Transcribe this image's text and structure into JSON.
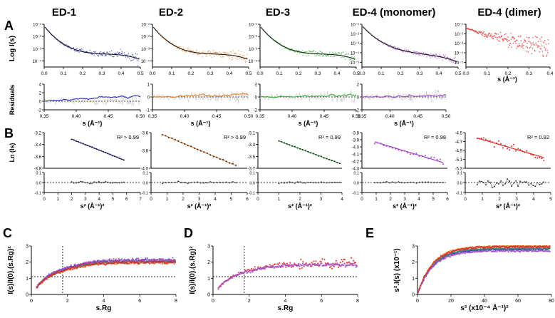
{
  "panel_letters": [
    "A",
    "B",
    "C",
    "D",
    "E"
  ],
  "column_titles": [
    "ED-1",
    "ED-2",
    "ED-3",
    "ED-4 (monomer)",
    "ED-4 (dimer)"
  ],
  "colors": {
    "ed1": "#2b2bb8",
    "ed2": "#e8802a",
    "ed3": "#34b536",
    "ed4_monomer": "#a04cc8",
    "ed4_dimer": "#dd2a2a",
    "fit": "#111111",
    "raw_noise": "#b0b0b0",
    "kratky_green": "#3a8a6a"
  },
  "chart_data": [
    {
      "id": "A-scattering",
      "type": "line",
      "ylabel": "Log I(s)",
      "xlabel": "s (Å⁻¹)",
      "xticks": [
        "0.0",
        "0.1",
        "0.2",
        "0.3",
        "0.4",
        "0.5"
      ],
      "yticks": [
        "10⁻¹",
        "10⁻²",
        "10⁻³",
        "10⁻⁴"
      ],
      "panels": [
        {
          "name": "ED-1",
          "xlim": [
            0,
            0.5
          ],
          "ylim_log10": [
            -4.5,
            -1
          ],
          "series": [
            {
              "name": "data",
              "color": "ed1"
            },
            {
              "name": "fit",
              "color": "fit"
            }
          ]
        },
        {
          "name": "ED-2",
          "xlim": [
            0,
            0.5
          ],
          "ylim_log10": [
            -4.5,
            -1
          ],
          "series": [
            {
              "name": "data",
              "color": "ed2"
            },
            {
              "name": "fit",
              "color": "fit"
            }
          ]
        },
        {
          "name": "ED-3",
          "xlim": [
            0,
            0.5
          ],
          "ylim_log10": [
            -4.5,
            -1
          ],
          "series": [
            {
              "name": "data",
              "color": "ed3"
            },
            {
              "name": "fit",
              "color": "fit"
            }
          ]
        },
        {
          "name": "ED-4 (monomer)",
          "xlim": [
            0,
            0.5
          ],
          "ylim_log10": [
            -5.5,
            -1
          ],
          "series": [
            {
              "name": "data",
              "color": "ed4_monomer"
            },
            {
              "name": "fit",
              "color": "fit"
            }
          ]
        },
        {
          "name": "ED-4 (dimer)",
          "xlim": [
            0,
            0.4
          ],
          "ylim_log10": [
            -5.5,
            -1
          ],
          "series": [
            {
              "name": "data",
              "color": "ed4_dimer"
            }
          ]
        }
      ],
      "dimer_xticks": [
        "0.0",
        "0.1",
        "0.2",
        "0.3",
        "0.4"
      ],
      "deep_yticks": [
        "10⁻¹",
        "10⁻²",
        "10⁻³",
        "10⁻⁴",
        "10⁻⁵"
      ]
    },
    {
      "id": "A-residuals",
      "type": "line",
      "ylabel": "Residuals",
      "xlabel": "s (Å⁻¹)",
      "xlim": [
        0.35,
        0.5
      ],
      "xticks": [
        "0.35",
        "0.40",
        "0.45",
        "0.50"
      ],
      "panels": [
        {
          "name": "ED-1",
          "ylim": [
            -2,
            4
          ],
          "yticks": [
            "4",
            "2",
            "0",
            "-2"
          ]
        },
        {
          "name": "ED-2",
          "ylim": [
            -1,
            1
          ],
          "yticks": [
            "1",
            "0",
            "-1"
          ]
        },
        {
          "name": "ED-3",
          "ylim": [
            -2,
            2
          ],
          "yticks": [
            "2",
            "0",
            "-2"
          ]
        },
        {
          "name": "ED-4 (monomer)",
          "ylim": [
            -2,
            2
          ],
          "yticks": [
            "2",
            "0",
            "-2"
          ]
        }
      ]
    },
    {
      "id": "B-guinier",
      "type": "scatter",
      "ylabel": "Ln (Is)",
      "xlabel": "s² (Å⁻¹)²",
      "panels": [
        {
          "name": "ED-1",
          "xlim": [
            0,
            7
          ],
          "xticks": [
            "0",
            "1",
            "2",
            "3",
            "4",
            "5",
            "6",
            "7"
          ],
          "ylim": [
            -3.8,
            -3.2
          ],
          "yticks": [
            "-3.2",
            "-3.4",
            "-3.6",
            "-3.8"
          ],
          "x_range": [
            2.0,
            5.8
          ],
          "y_range": [
            -3.31,
            -3.66
          ],
          "r2": "R² > 0.99",
          "color": "ed1"
        },
        {
          "name": "ED-2",
          "xlim": [
            0,
            6
          ],
          "xticks": [
            "0",
            "1",
            "2",
            "3",
            "4",
            "5",
            "6"
          ],
          "ylim": [
            -4.0,
            -3.6
          ],
          "yticks": [
            "-3.6",
            "-3.8",
            "-4.0"
          ],
          "x_range": [
            0.7,
            5.3
          ],
          "y_range": [
            -3.62,
            -3.97
          ],
          "r2": "R² > 0.99",
          "color": "ed2"
        },
        {
          "name": "ED-3",
          "xlim": [
            0,
            4
          ],
          "xticks": [
            "0",
            "1",
            "2",
            "3",
            "4"
          ],
          "ylim": [
            -3.7,
            -3.1
          ],
          "yticks": [
            "-3.1",
            "-3.3",
            "-3.5",
            "-3.7"
          ],
          "x_range": [
            1.0,
            3.9
          ],
          "y_range": [
            -3.24,
            -3.62
          ],
          "r2": "R² = 0.99",
          "color": "ed3"
        },
        {
          "name": "ED-4 (monomer)",
          "xlim": [
            0,
            6
          ],
          "xticks": [
            "0",
            "1",
            "2",
            "3",
            "4",
            "5",
            "6"
          ],
          "ylim": [
            -4.3,
            -3.8
          ],
          "yticks": [
            "-3.8",
            "-3.9",
            "-4.0",
            "-4.1",
            "-4.2",
            "-4.3"
          ],
          "x_range": [
            0.9,
            5.7
          ],
          "y_range": [
            -3.93,
            -4.22
          ],
          "r2": "R² = 0.98",
          "color": "ed4_monomer"
        },
        {
          "name": "ED-4 (dimer)",
          "xlim": [
            0,
            5
          ],
          "xticks": [
            "0",
            "1",
            "2",
            "3",
            "4",
            "5"
          ],
          "ylim": [
            -5.3,
            -4.5
          ],
          "yticks": [
            "-4.5",
            "-4.7",
            "-4.9",
            "-5.1",
            "-5.3"
          ],
          "x_range": [
            0.7,
            4.6
          ],
          "y_range": [
            -4.62,
            -5.06
          ],
          "r2": "R² = 0.92",
          "color": "ed4_dimer"
        }
      ],
      "residual_ylim": [
        -0.1,
        0.1
      ],
      "residual_yticks": [
        "0.1",
        "0.0",
        "-0.1"
      ]
    },
    {
      "id": "C-kratky",
      "type": "scatter",
      "xlabel": "s.Rg",
      "ylabel": "I(s)/I(0).(s.Rg)²",
      "xlim": [
        0,
        8
      ],
      "ylim": [
        0,
        3
      ],
      "xticks": [
        "0",
        "2",
        "4",
        "6",
        "8"
      ],
      "yticks": [
        "0",
        "1",
        "2",
        "3"
      ],
      "guides": {
        "x": 1.73,
        "y": 1.1
      },
      "series": [
        {
          "name": "ED-1",
          "color": "ed1",
          "plateau": 2.1
        },
        {
          "name": "ED-2",
          "color": "ed2",
          "plateau": 2.0
        },
        {
          "name": "ED-3",
          "color": "kratky_green",
          "plateau": 2.05
        },
        {
          "name": "ED-4 (monomer)",
          "color": "ed4_monomer",
          "plateau": 2.15
        },
        {
          "name": "ED-4 (dimer)",
          "color": "ed4_dimer",
          "plateau": 2.0
        }
      ]
    },
    {
      "id": "D-kratky",
      "type": "scatter",
      "xlabel": "s.Rg",
      "ylabel": "I(s)/I(0).(s.Rg)²",
      "xlim": [
        0,
        8
      ],
      "ylim": [
        0,
        3
      ],
      "xticks": [
        "0",
        "2",
        "4",
        "6",
        "8"
      ],
      "yticks": [
        "0",
        "1",
        "2",
        "3"
      ],
      "guides": {
        "x": 1.73,
        "y": 1.1
      },
      "series": [
        {
          "name": "ED-4 (dimer)",
          "color": "ed4_dimer",
          "plateau": 1.9
        },
        {
          "name": "ED-4 (monomer)",
          "color": "ed4_monomer",
          "plateau": 1.85
        }
      ]
    },
    {
      "id": "E-porod",
      "type": "scatter",
      "xlabel": "s² (x10⁻⁴ Å⁻¹)²",
      "ylabel": "s².I(s) (x10⁻¹)",
      "xlim": [
        0,
        80
      ],
      "ylim": [
        0,
        3
      ],
      "xticks": [
        "0",
        "20",
        "40",
        "60",
        "80"
      ],
      "yticks": [
        "0",
        "1",
        "2",
        "3"
      ],
      "series": [
        {
          "name": "ED-1",
          "color": "ed1",
          "plateau": 2.8
        },
        {
          "name": "ED-2",
          "color": "ed2",
          "plateau": 3.0
        },
        {
          "name": "ED-3",
          "color": "kratky_green",
          "plateau": 2.85
        },
        {
          "name": "ED-4 (monomer)",
          "color": "ed4_monomer",
          "plateau": 2.7
        },
        {
          "name": "ED-4 (dimer)",
          "color": "ed4_dimer",
          "plateau": 2.95
        }
      ]
    }
  ]
}
